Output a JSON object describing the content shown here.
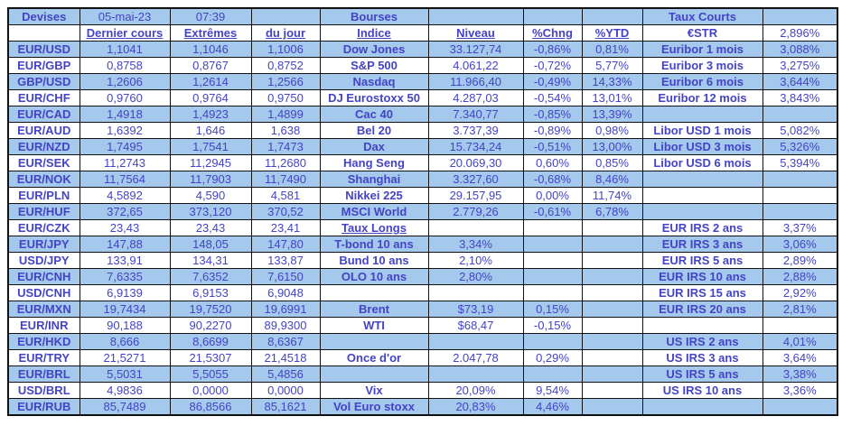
{
  "meta": {
    "date": "05-mai-23",
    "time": "07:39"
  },
  "colors": {
    "stripe": "#a4c9ec",
    "label_text": "#1f3864",
    "value_text": "#4444c4",
    "border": "#111111"
  },
  "devises": {
    "title": "Devises",
    "headers": {
      "last": "Dernier cours",
      "extremes": "Extrêmes",
      "du_jour": "du jour"
    },
    "rows": [
      {
        "pair": "EUR/USD",
        "last": "1,1041",
        "extremes": "1,1046",
        "du_jour": "1,1006"
      },
      {
        "pair": "EUR/GBP",
        "last": "0,8758",
        "extremes": "0,8767",
        "du_jour": "0,8752"
      },
      {
        "pair": "GBP/USD",
        "last": "1,2606",
        "extremes": "1,2614",
        "du_jour": "1,2566"
      },
      {
        "pair": "EUR/CHF",
        "last": "0,9760",
        "extremes": "0,9764",
        "du_jour": "0,9750"
      },
      {
        "pair": "EUR/CAD",
        "last": "1,4918",
        "extremes": "1,4923",
        "du_jour": "1,4899"
      },
      {
        "pair": "EUR/AUD",
        "last": "1,6392",
        "extremes": "1,646",
        "du_jour": "1,638"
      },
      {
        "pair": "EUR/NZD",
        "last": "1,7495",
        "extremes": "1,7541",
        "du_jour": "1,7473"
      },
      {
        "pair": "EUR/SEK",
        "last": "11,2743",
        "extremes": "11,2945",
        "du_jour": "11,2680"
      },
      {
        "pair": "EUR/NOK",
        "last": "11,7564",
        "extremes": "11,7903",
        "du_jour": "11,7490"
      },
      {
        "pair": "EUR/PLN",
        "last": "4,5892",
        "extremes": "4,590",
        "du_jour": "4,581"
      },
      {
        "pair": "EUR/HUF",
        "last": "372,65",
        "extremes": "373,120",
        "du_jour": "370,52"
      },
      {
        "pair": "EUR/CZK",
        "last": "23,43",
        "extremes": "23,43",
        "du_jour": "23,41"
      },
      {
        "pair": "EUR/JPY",
        "last": "147,88",
        "extremes": "148,05",
        "du_jour": "147,80"
      },
      {
        "pair": "USD/JPY",
        "last": "133,91",
        "extremes": "134,31",
        "du_jour": "133,87"
      },
      {
        "pair": "EUR/CNH",
        "last": "7,6335",
        "extremes": "7,6352",
        "du_jour": "7,6150"
      },
      {
        "pair": "USD/CNH",
        "last": "6,9139",
        "extremes": "6,9153",
        "du_jour": "6,9048"
      },
      {
        "pair": "EUR/MXN",
        "last": "19,7434",
        "extremes": "19,7520",
        "du_jour": "19,6991"
      },
      {
        "pair": "EUR/INR",
        "last": "90,188",
        "extremes": "90,2270",
        "du_jour": "89,9300"
      },
      {
        "pair": "EUR/HKD",
        "last": "8,666",
        "extremes": "8,6699",
        "du_jour": "8,6367"
      },
      {
        "pair": "EUR/TRY",
        "last": "21,5271",
        "extremes": "21,5307",
        "du_jour": "21,4518"
      },
      {
        "pair": "EUR/BRL",
        "last": "5,5031",
        "extremes": "5,5055",
        "du_jour": "5,4856"
      },
      {
        "pair": "USD/BRL",
        "last": "4,9836",
        "extremes": "0,0000",
        "du_jour": "0,0000"
      },
      {
        "pair": "EUR/RUB",
        "last": "85,7489",
        "extremes": "86,8566",
        "du_jour": "85,1621"
      }
    ]
  },
  "bourses": {
    "title": "Bourses",
    "headers": {
      "indice": "Indice",
      "niveau": "Niveau",
      "chng": "%Chng",
      "ytd": "%YTD"
    },
    "rows": [
      {
        "label": "Dow Jones",
        "underline": false,
        "niveau": "33.127,74",
        "niveau_align": "right",
        "chng": "-0,86%",
        "ytd": "0,81%"
      },
      {
        "label": "S&P 500",
        "underline": false,
        "niveau": "4.061,22",
        "niveau_align": "right",
        "chng": "-0,72%",
        "ytd": "5,77%"
      },
      {
        "label": "Nasdaq",
        "underline": false,
        "niveau": "11.966,40",
        "niveau_align": "right",
        "chng": "-0,49%",
        "ytd": "14,33%"
      },
      {
        "label": "DJ Eurostoxx 50",
        "underline": false,
        "niveau": "4.287,03",
        "niveau_align": "right",
        "chng": "-0,54%",
        "ytd": "13,01%"
      },
      {
        "label": "Cac 40",
        "underline": false,
        "niveau": "7.340,77",
        "niveau_align": "right",
        "chng": "-0,85%",
        "ytd": "13,39%"
      },
      {
        "label": "Bel 20",
        "underline": false,
        "niveau": "3.737,39",
        "niveau_align": "right",
        "chng": "-0,89%",
        "ytd": "0,98%"
      },
      {
        "label": "Dax",
        "underline": false,
        "niveau": "15.734,24",
        "niveau_align": "right",
        "chng": "-0,51%",
        "ytd": "13,00%"
      },
      {
        "label": "Hang Seng",
        "underline": false,
        "niveau": "20.069,30",
        "niveau_align": "right",
        "chng": "0,60%",
        "ytd": "0,85%"
      },
      {
        "label": "Shanghai",
        "underline": false,
        "niveau": "3.327,60",
        "niveau_align": "right",
        "chng": "-0,68%",
        "ytd": "8,46%"
      },
      {
        "label": "Nikkei 225",
        "underline": false,
        "niveau": "29.157,95",
        "niveau_align": "right",
        "chng": "0,00%",
        "ytd": "11,74%"
      },
      {
        "label": "MSCI World",
        "underline": false,
        "niveau": "2.779,26",
        "niveau_align": "right",
        "chng": "-0,61%",
        "ytd": "6,78%"
      },
      {
        "label": "Taux Longs",
        "underline": true,
        "niveau": "",
        "niveau_align": "center",
        "chng": "",
        "ytd": ""
      },
      {
        "label": "T-bond 10 ans",
        "underline": false,
        "niveau": "3,34%",
        "niveau_align": "center",
        "chng": "",
        "ytd": ""
      },
      {
        "label": "Bund 10 ans",
        "underline": false,
        "niveau": "2,10%",
        "niveau_align": "center",
        "chng": "",
        "ytd": ""
      },
      {
        "label": "OLO 10 ans",
        "underline": false,
        "niveau": "2,80%",
        "niveau_align": "center",
        "chng": "",
        "ytd": ""
      },
      {
        "label": "",
        "underline": false,
        "niveau": "",
        "niveau_align": "center",
        "chng": "",
        "ytd": ""
      },
      {
        "label": "Brent",
        "underline": false,
        "niveau": "$73,19",
        "niveau_align": "center",
        "chng": "0,15%",
        "ytd": ""
      },
      {
        "label": "WTI",
        "underline": false,
        "niveau": "$68,47",
        "niveau_align": "center",
        "chng": "-0,15%",
        "ytd": ""
      },
      {
        "label": "",
        "underline": false,
        "niveau": "",
        "niveau_align": "center",
        "chng": "",
        "ytd": ""
      },
      {
        "label": "Once d'or",
        "underline": false,
        "niveau": "2.047,78",
        "niveau_align": "right",
        "chng": "0,29%",
        "ytd": ""
      },
      {
        "label": "",
        "underline": false,
        "niveau": "",
        "niveau_align": "center",
        "chng": "",
        "ytd": ""
      },
      {
        "label": "Vix",
        "underline": false,
        "niveau": "20,09%",
        "niveau_align": "center",
        "chng": "9,54%",
        "ytd": ""
      },
      {
        "label": "Vol Euro stoxx",
        "underline": false,
        "niveau": "20,83%",
        "niveau_align": "center",
        "chng": "4,46%",
        "ytd": ""
      }
    ]
  },
  "taux_courts": {
    "title": "Taux Courts",
    "estr": {
      "label": "€STR",
      "value": "2,896%"
    },
    "rows": [
      {
        "label": "Euribor 1 mois",
        "value": "3,088%"
      },
      {
        "label": "Euribor 3 mois",
        "value": "3,275%"
      },
      {
        "label": "Euribor 6 mois",
        "value": "3,644%"
      },
      {
        "label": "Euribor 12 mois",
        "value": "3,843%"
      },
      {
        "label": "",
        "value": ""
      },
      {
        "label": "Libor USD 1 mois",
        "value": "5,082%"
      },
      {
        "label": "Libor USD 3 mois",
        "value": "5,326%"
      },
      {
        "label": "Libor USD 6 mois",
        "value": "5,394%"
      },
      {
        "label": "",
        "value": ""
      },
      {
        "label": "",
        "value": ""
      },
      {
        "label": "",
        "value": ""
      },
      {
        "label": "EUR IRS 2 ans",
        "value": "3,37%"
      },
      {
        "label": "EUR IRS 3 ans",
        "value": "3,06%"
      },
      {
        "label": "EUR IRS 5 ans",
        "value": "2,89%"
      },
      {
        "label": "EUR IRS 10 ans",
        "value": "2,88%"
      },
      {
        "label": "EUR IRS 15 ans",
        "value": "2,92%"
      },
      {
        "label": "EUR IRS 20 ans",
        "value": "2,81%"
      },
      {
        "label": "",
        "value": ""
      },
      {
        "label": "US IRS 2 ans",
        "value": "4,01%"
      },
      {
        "label": "US IRS 3 ans",
        "value": "3,64%"
      },
      {
        "label": "US IRS 5 ans",
        "value": "3,38%"
      },
      {
        "label": "US IRS 10 ans",
        "value": "3,36%"
      },
      {
        "label": "",
        "value": ""
      }
    ]
  }
}
